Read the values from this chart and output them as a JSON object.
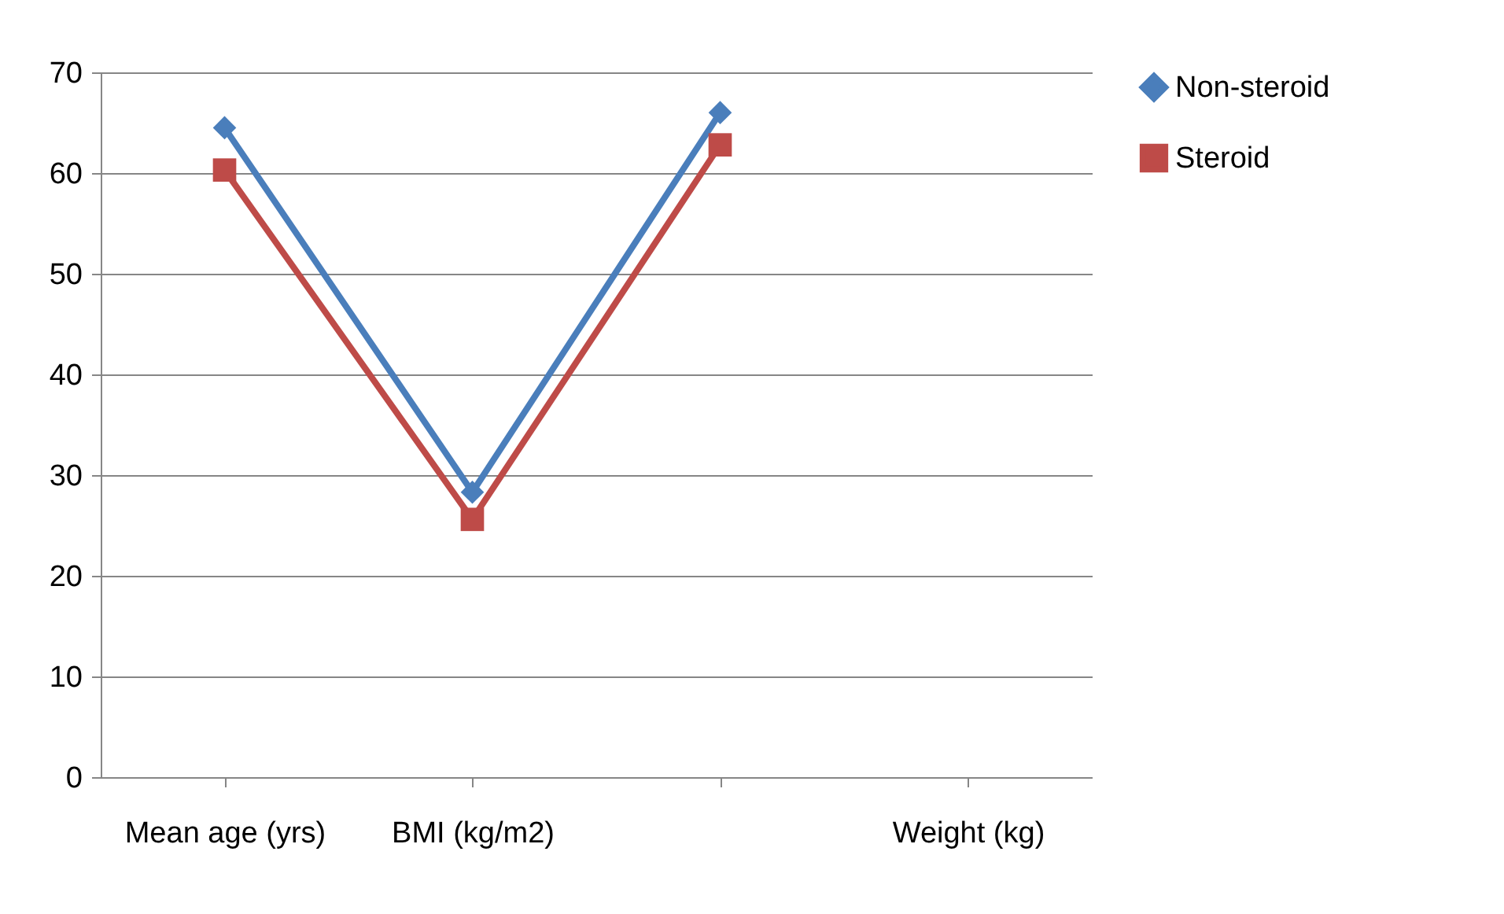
{
  "chart_data": {
    "type": "line",
    "categories": [
      "Mean age (yrs)",
      "BMI (kg/m2)",
      null,
      "Weight (kg)"
    ],
    "series": [
      {
        "name": "Non-steroid",
        "color": "#4a7ebb",
        "marker": "diamond",
        "values": [
          64.5,
          28.3,
          66,
          null
        ]
      },
      {
        "name": "Steroid",
        "color": "#be4b48",
        "marker": "square",
        "values": [
          60.3,
          25.6,
          62.8,
          null
        ]
      }
    ],
    "ylim": [
      0,
      70
    ],
    "yticks": [
      0,
      10,
      20,
      30,
      40,
      50,
      60,
      70
    ],
    "grid": "y",
    "legend": "right",
    "line_style": "solid"
  }
}
